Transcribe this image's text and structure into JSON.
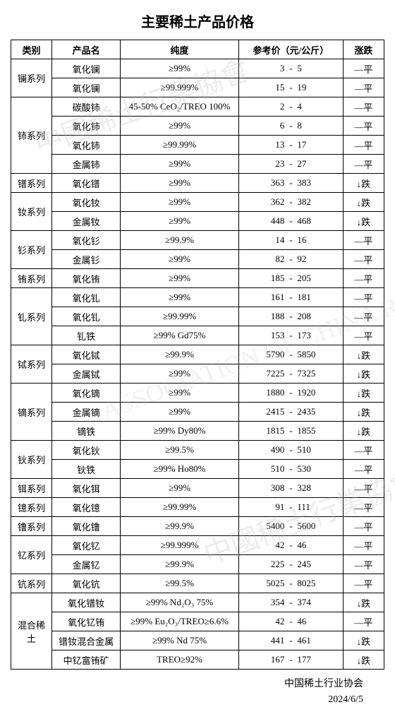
{
  "title": "主要稀土产品价格",
  "headers": {
    "category": "类别",
    "product": "产品名",
    "purity": "纯度",
    "price": "参考价（元/公斤）",
    "trend": "涨跌"
  },
  "trend_labels": {
    "flat": "—平",
    "down": "↓跌"
  },
  "groups": [
    {
      "category": "镧系列",
      "rows": [
        {
          "product": "氧化镧",
          "purity": "≥99%",
          "low": "3",
          "high": "5",
          "trend": "flat"
        },
        {
          "product": "氧化镧",
          "purity": "≥99.999%",
          "low": "15",
          "high": "19",
          "trend": "flat"
        }
      ]
    },
    {
      "category": "铈系列",
      "rows": [
        {
          "product": "碳酸铈",
          "purity": "45-50% CeO₂/TREO 100%",
          "low": "2",
          "high": "4",
          "trend": "flat"
        },
        {
          "product": "氧化铈",
          "purity": "≥99%",
          "low": "6",
          "high": "8",
          "trend": "flat"
        },
        {
          "product": "氧化铈",
          "purity": "≥99.99%",
          "low": "13",
          "high": "17",
          "trend": "flat"
        },
        {
          "product": "金属铈",
          "purity": "≥99%",
          "low": "23",
          "high": "27",
          "trend": "flat"
        }
      ]
    },
    {
      "category": "镨系列",
      "rows": [
        {
          "product": "氧化镨",
          "purity": "≥99%",
          "low": "363",
          "high": "383",
          "trend": "down"
        }
      ]
    },
    {
      "category": "钕系列",
      "rows": [
        {
          "product": "氧化钕",
          "purity": "≥99%",
          "low": "362",
          "high": "382",
          "trend": "down"
        },
        {
          "product": "金属钕",
          "purity": "≥99%",
          "low": "448",
          "high": "468",
          "trend": "down"
        }
      ]
    },
    {
      "category": "钐系列",
      "rows": [
        {
          "product": "氧化钐",
          "purity": "≥99.9%",
          "low": "14",
          "high": "16",
          "trend": "flat"
        },
        {
          "product": "金属钐",
          "purity": "≥99%",
          "low": "82",
          "high": "92",
          "trend": "flat"
        }
      ]
    },
    {
      "category": "铕系列",
      "rows": [
        {
          "product": "氧化铕",
          "purity": "≥99%",
          "low": "185",
          "high": "205",
          "trend": "flat"
        }
      ]
    },
    {
      "category": "钆系列",
      "rows": [
        {
          "product": "氧化钆",
          "purity": "≥99%",
          "low": "161",
          "high": "181",
          "trend": "flat"
        },
        {
          "product": "氧化钆",
          "purity": "≥99.99%",
          "low": "188",
          "high": "208",
          "trend": "flat"
        },
        {
          "product": "钆铁",
          "purity": "≥99% Gd75%",
          "low": "153",
          "high": "173",
          "trend": "flat"
        }
      ]
    },
    {
      "category": "铽系列",
      "rows": [
        {
          "product": "氧化铽",
          "purity": "≥99.9%",
          "low": "5790",
          "high": "5850",
          "trend": "down"
        },
        {
          "product": "金属铽",
          "purity": "≥99%",
          "low": "7225",
          "high": "7325",
          "trend": "down"
        }
      ]
    },
    {
      "category": "镝系列",
      "rows": [
        {
          "product": "氧化镝",
          "purity": "≥99%",
          "low": "1880",
          "high": "1920",
          "trend": "down"
        },
        {
          "product": "金属镝",
          "purity": "≥99%",
          "low": "2415",
          "high": "2435",
          "trend": "down"
        },
        {
          "product": "镝铁",
          "purity": "≥99% Dy80%",
          "low": "1815",
          "high": "1855",
          "trend": "down"
        }
      ]
    },
    {
      "category": "钬系列",
      "rows": [
        {
          "product": "氧化钬",
          "purity": "≥99.5%",
          "low": "490",
          "high": "510",
          "trend": "flat"
        },
        {
          "product": "钬铁",
          "purity": "≥99% Ho80%",
          "low": "510",
          "high": "530",
          "trend": "flat"
        }
      ]
    },
    {
      "category": "铒系列",
      "rows": [
        {
          "product": "氧化铒",
          "purity": "≥99%",
          "low": "308",
          "high": "328",
          "trend": "flat"
        }
      ]
    },
    {
      "category": "镱系列",
      "rows": [
        {
          "product": "氧化镱",
          "purity": "≥99.99%",
          "low": "91",
          "high": "111",
          "trend": "flat"
        }
      ]
    },
    {
      "category": "镥系列",
      "rows": [
        {
          "product": "氧化镥",
          "purity": "≥99.9%",
          "low": "5400",
          "high": "5600",
          "trend": "flat"
        }
      ]
    },
    {
      "category": "钇系列",
      "rows": [
        {
          "product": "氧化钇",
          "purity": "≥99.999%",
          "low": "42",
          "high": "46",
          "trend": "flat"
        },
        {
          "product": "金属钇",
          "purity": "≥99.9%",
          "low": "225",
          "high": "245",
          "trend": "flat"
        }
      ]
    },
    {
      "category": "钪系列",
      "rows": [
        {
          "product": "氧化钪",
          "purity": "≥99.5%",
          "low": "5025",
          "high": "8025",
          "trend": "flat"
        }
      ]
    },
    {
      "category": "混合稀土",
      "rows": [
        {
          "product": "氧化镨钕",
          "purity": "≥99%  Nd₂O₃  75%",
          "low": "354",
          "high": "374",
          "trend": "down"
        },
        {
          "product": "氧化钇铕",
          "purity": "≥99% Eu₂O₃/TREO≥6.6%",
          "low": "42",
          "high": "46",
          "trend": "flat"
        },
        {
          "product": "镨钕混合金属",
          "purity": "≥99% Nd 75%",
          "low": "441",
          "high": "461",
          "trend": "down"
        },
        {
          "product": "中钇富铕矿",
          "purity": "TREO≥92%",
          "low": "167",
          "high": "177",
          "trend": "down"
        }
      ]
    }
  ],
  "footer": {
    "org": "中国稀土行业协会",
    "date": "2024/6/5"
  },
  "watermark": "中國稀土行業協會"
}
